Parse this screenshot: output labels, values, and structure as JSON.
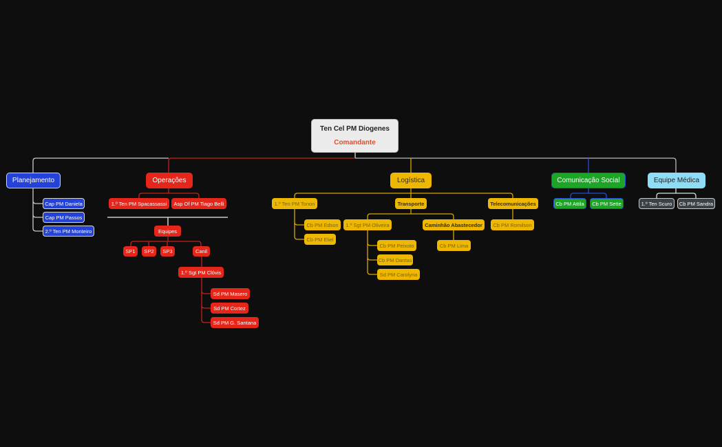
{
  "root": {
    "name": "Ten Cel PM Diogenes",
    "role": "Comandante"
  },
  "planejamento": {
    "title": "Planejamento",
    "members": [
      "Cap PM Daniela",
      "Cap PM Passos",
      "2.º Ten PM Monteiro"
    ]
  },
  "operacoes": {
    "title": "Operações",
    "members": [
      "1.º Ten PM Spacassassi",
      "Asp Of PM Tiago Belli"
    ],
    "equipes": {
      "title": "Equipes",
      "teams": [
        "SP1",
        "SP2",
        "SP3",
        "Canil"
      ]
    },
    "canil": {
      "leader": "1.º Sgt PM Clóvis",
      "members": [
        "Sd PM Masero",
        "Sd PM Cortez",
        "Sd PM G. Santana"
      ]
    }
  },
  "logistica": {
    "title": "Logística",
    "tonon": {
      "name": "1.º Ten PM Tonon",
      "members": [
        "Cb PM Edson",
        "Cb PM Eliel"
      ]
    },
    "transporte": {
      "title": "Transporte",
      "oliveira": {
        "name": "1.º Sgt PM Oliveira",
        "members": [
          "Cb PM Peixoto",
          "Cb PM Dantas",
          "Sd PM Carolyna"
        ]
      },
      "caminhao": {
        "title": "Caminhão Abastecedor",
        "members": [
          "Cb PM Lima"
        ]
      }
    },
    "telecom": {
      "title": "Telecomunicações",
      "members": [
        "Cb PM Romilson"
      ]
    }
  },
  "comunicacao": {
    "title": "Comunicação Social",
    "members": [
      "Cb PM Attila",
      "Cb PM Sette"
    ]
  },
  "medica": {
    "title": "Equipe Médica",
    "members": [
      "1.º Ten Scuro",
      "Cb PM Sandra"
    ]
  },
  "colors": {
    "planejamento": "#2442d8",
    "operacoes": "#e5261a",
    "logistica": "#eeb802",
    "comunicacao": "#1ca526",
    "medica": "#8edcf6",
    "background": "#0e0e0e"
  }
}
